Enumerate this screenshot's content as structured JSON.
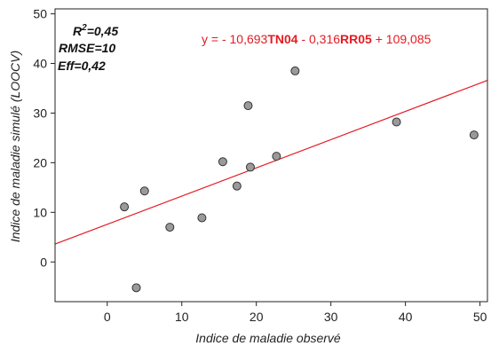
{
  "chart_data": {
    "type": "scatter",
    "xlabel": "Indice de maladie observé",
    "ylabel": "Indice de maladie simulé (LOOCV)",
    "xlim": [
      -7,
      51
    ],
    "ylim": [
      -8,
      51
    ],
    "xticks": [
      "0",
      "10",
      "20",
      "30",
      "40",
      "50"
    ],
    "yticks": [
      "0",
      "10",
      "20",
      "30",
      "40",
      "50"
    ],
    "grid": false,
    "points": [
      {
        "x": 2.3,
        "y": 11.1
      },
      {
        "x": 3.9,
        "y": -5.2
      },
      {
        "x": 5.0,
        "y": 14.3
      },
      {
        "x": 8.4,
        "y": 7.0
      },
      {
        "x": 12.7,
        "y": 8.9
      },
      {
        "x": 15.5,
        "y": 20.2
      },
      {
        "x": 17.4,
        "y": 15.3
      },
      {
        "x": 18.9,
        "y": 31.5
      },
      {
        "x": 19.2,
        "y": 19.1
      },
      {
        "x": 22.7,
        "y": 21.3
      },
      {
        "x": 25.2,
        "y": 38.5
      },
      {
        "x": 38.8,
        "y": 28.2
      },
      {
        "x": 49.2,
        "y": 25.6
      }
    ],
    "fit_line": {
      "x": [
        -7,
        51
      ],
      "y": [
        3.6,
        36.6
      ]
    },
    "stats": {
      "r2_prefix": "R",
      "r2_sup": "2",
      "r2_value": "=0,45",
      "rmse": "RMSE=10",
      "eff": "Eff=0,42"
    },
    "equation": {
      "part1": "y = - 10,693",
      "var1": "TN04",
      "part2": " - 0,316",
      "var2": "RR05",
      "part3": " + 109,085"
    },
    "colors": {
      "line": "#e31b23",
      "marker_fill": "#9a9a9a",
      "marker_stroke": "#333333",
      "axis": "#222222"
    }
  }
}
